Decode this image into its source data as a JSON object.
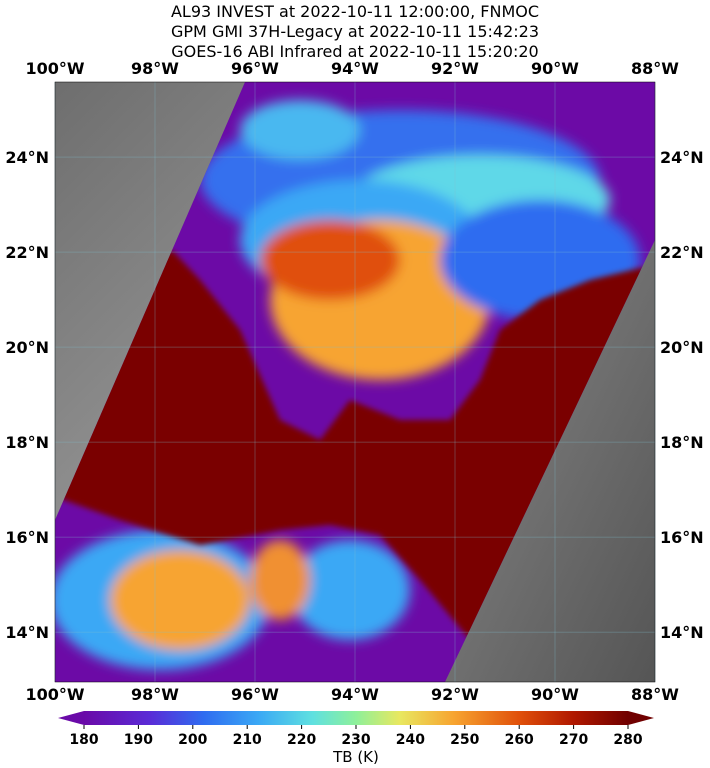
{
  "title": [
    "AL93 INVEST at 2022-10-11 12:00:00, FNMOC",
    "GPM GMI 37H-Legacy at 2022-10-11 15:42:23",
    "GOES-16 ABI Infrared at 2022-10-11 15:20:20"
  ],
  "map": {
    "lonlim": [
      -100,
      -88
    ],
    "latlim": [
      12.95,
      25.58
    ],
    "lonticks": [
      {
        "value": -100,
        "label": "100°W"
      },
      {
        "value": -98,
        "label": "98°W"
      },
      {
        "value": -96,
        "label": "96°W"
      },
      {
        "value": -94,
        "label": "94°W"
      },
      {
        "value": -92,
        "label": "92°W"
      },
      {
        "value": -90,
        "label": "90°W"
      },
      {
        "value": -88,
        "label": "88°W"
      }
    ],
    "latticks": [
      {
        "value": 14,
        "label": "14°N"
      },
      {
        "value": 16,
        "label": "16°N"
      },
      {
        "value": 18,
        "label": "18°N"
      },
      {
        "value": 20,
        "label": "20°N"
      },
      {
        "value": 22,
        "label": "22°N"
      },
      {
        "value": 24,
        "label": "24°N"
      }
    ]
  },
  "colorbar": {
    "lim": [
      180,
      280
    ],
    "ticks": [
      180,
      190,
      200,
      210,
      220,
      230,
      240,
      250,
      260,
      270,
      280
    ],
    "label": "TB (K)"
  }
}
